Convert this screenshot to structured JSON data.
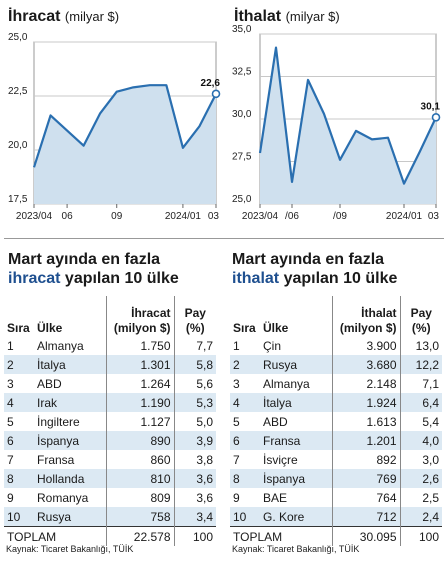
{
  "left_chart": {
    "title": "İhracat",
    "unit": "(milyar $)",
    "end_label": "22,6",
    "y_ticks": [
      "25,0",
      "22,5",
      "20,0",
      "17,5"
    ],
    "x_labels": [
      "2023/04",
      "06",
      "09",
      "2024/01",
      "03"
    ]
  },
  "right_chart": {
    "title": "İthalat",
    "unit": "(milyar $)",
    "end_label": "30,1",
    "y_ticks": [
      "35,0",
      "32,5",
      "30,0",
      "27,5",
      "25,0"
    ],
    "x_labels": [
      "2023/04",
      "/06",
      "/09",
      "2024/01",
      "03"
    ]
  },
  "chart_data": [
    {
      "type": "area",
      "title": "İhracat (milyar $)",
      "x": [
        "2023/04",
        "2023/05",
        "2023/06",
        "2023/07",
        "2023/08",
        "2023/09",
        "2023/10",
        "2023/11",
        "2023/12",
        "2024/01",
        "2024/02",
        "2024/03"
      ],
      "values": [
        19.2,
        21.6,
        20.9,
        20.2,
        21.7,
        22.7,
        22.9,
        23.0,
        23.0,
        20.1,
        21.1,
        22.6
      ],
      "ylim": [
        17.5,
        25.0
      ],
      "yticks": [
        17.5,
        20.0,
        22.5,
        25.0
      ],
      "grid": true,
      "color": "#2a6fb0",
      "fill": "#cfe0ee"
    },
    {
      "type": "area",
      "title": "İthalat (milyar $)",
      "x": [
        "2023/04",
        "2023/05",
        "2023/06",
        "2023/07",
        "2023/08",
        "2023/09",
        "2023/10",
        "2023/11",
        "2023/12",
        "2024/01",
        "2024/02",
        "2024/03"
      ],
      "values": [
        28.0,
        34.2,
        26.3,
        32.3,
        30.3,
        27.6,
        29.3,
        28.8,
        28.9,
        26.2,
        28.1,
        30.1
      ],
      "ylim": [
        25.0,
        35.0
      ],
      "yticks": [
        25.0,
        27.5,
        30.0,
        32.5,
        35.0
      ],
      "grid": true,
      "color": "#2a6fb0",
      "fill": "#cfe0ee"
    }
  ],
  "left_table": {
    "title_line1": "Mart ayında en fazla",
    "title_accent": "ihracat",
    "title_rest": " yapılan 10 ülke",
    "headers": {
      "rank": "Sıra",
      "country": "Ülke",
      "value_1": "İhracat",
      "value_2": "(milyon $)",
      "share_1": "Pay",
      "share_2": "(%)"
    },
    "rows": [
      {
        "rank": "1",
        "country": "Almanya",
        "value": "1.750",
        "share": "7,7"
      },
      {
        "rank": "2",
        "country": "İtalya",
        "value": "1.301",
        "share": "5,8"
      },
      {
        "rank": "3",
        "country": "ABD",
        "value": "1.264",
        "share": "5,6"
      },
      {
        "rank": "4",
        "country": "Irak",
        "value": "1.190",
        "share": "5,3"
      },
      {
        "rank": "5",
        "country": "İngiltere",
        "value": "1.127",
        "share": "5,0"
      },
      {
        "rank": "6",
        "country": "İspanya",
        "value": "890",
        "share": "3,9"
      },
      {
        "rank": "7",
        "country": "Fransa",
        "value": "860",
        "share": "3,8"
      },
      {
        "rank": "8",
        "country": "Hollanda",
        "value": "810",
        "share": "3,6"
      },
      {
        "rank": "9",
        "country": "Romanya",
        "value": "809",
        "share": "3,6"
      },
      {
        "rank": "10",
        "country": "Rusya",
        "value": "758",
        "share": "3,4"
      }
    ],
    "total": {
      "label": "TOPLAM",
      "value": "22.578",
      "share": "100"
    }
  },
  "right_table": {
    "title_line1": "Mart ayında en fazla",
    "title_accent": "ithalat",
    "title_rest": " yapılan 10 ülke",
    "headers": {
      "rank": "Sıra",
      "country": "Ülke",
      "value_1": "İthalat",
      "value_2": "(milyon $)",
      "share_1": "Pay",
      "share_2": "(%)"
    },
    "rows": [
      {
        "rank": "1",
        "country": "Çin",
        "value": "3.900",
        "share": "13,0"
      },
      {
        "rank": "2",
        "country": "Rusya",
        "value": "3.680",
        "share": "12,2"
      },
      {
        "rank": "3",
        "country": "Almanya",
        "value": "2.148",
        "share": "7,1"
      },
      {
        "rank": "4",
        "country": "İtalya",
        "value": "1.924",
        "share": "6,4"
      },
      {
        "rank": "5",
        "country": "ABD",
        "value": "1.613",
        "share": "5,4"
      },
      {
        "rank": "6",
        "country": "Fransa",
        "value": "1.201",
        "share": "4,0"
      },
      {
        "rank": "7",
        "country": "İsviçre",
        "value": "892",
        "share": "3,0"
      },
      {
        "rank": "8",
        "country": "İspanya",
        "value": "769",
        "share": "2,6"
      },
      {
        "rank": "9",
        "country": "BAE",
        "value": "764",
        "share": "2,5"
      },
      {
        "rank": "10",
        "country": "G. Kore",
        "value": "712",
        "share": "2,4"
      }
    ],
    "total": {
      "label": "TOPLAM",
      "value": "30.095",
      "share": "100"
    }
  },
  "source_left": "Kaynak: Ticaret Bakanlığı, TÜİK",
  "source_right": "Kaynak: Ticaret Bakanlığı, TÜİK"
}
